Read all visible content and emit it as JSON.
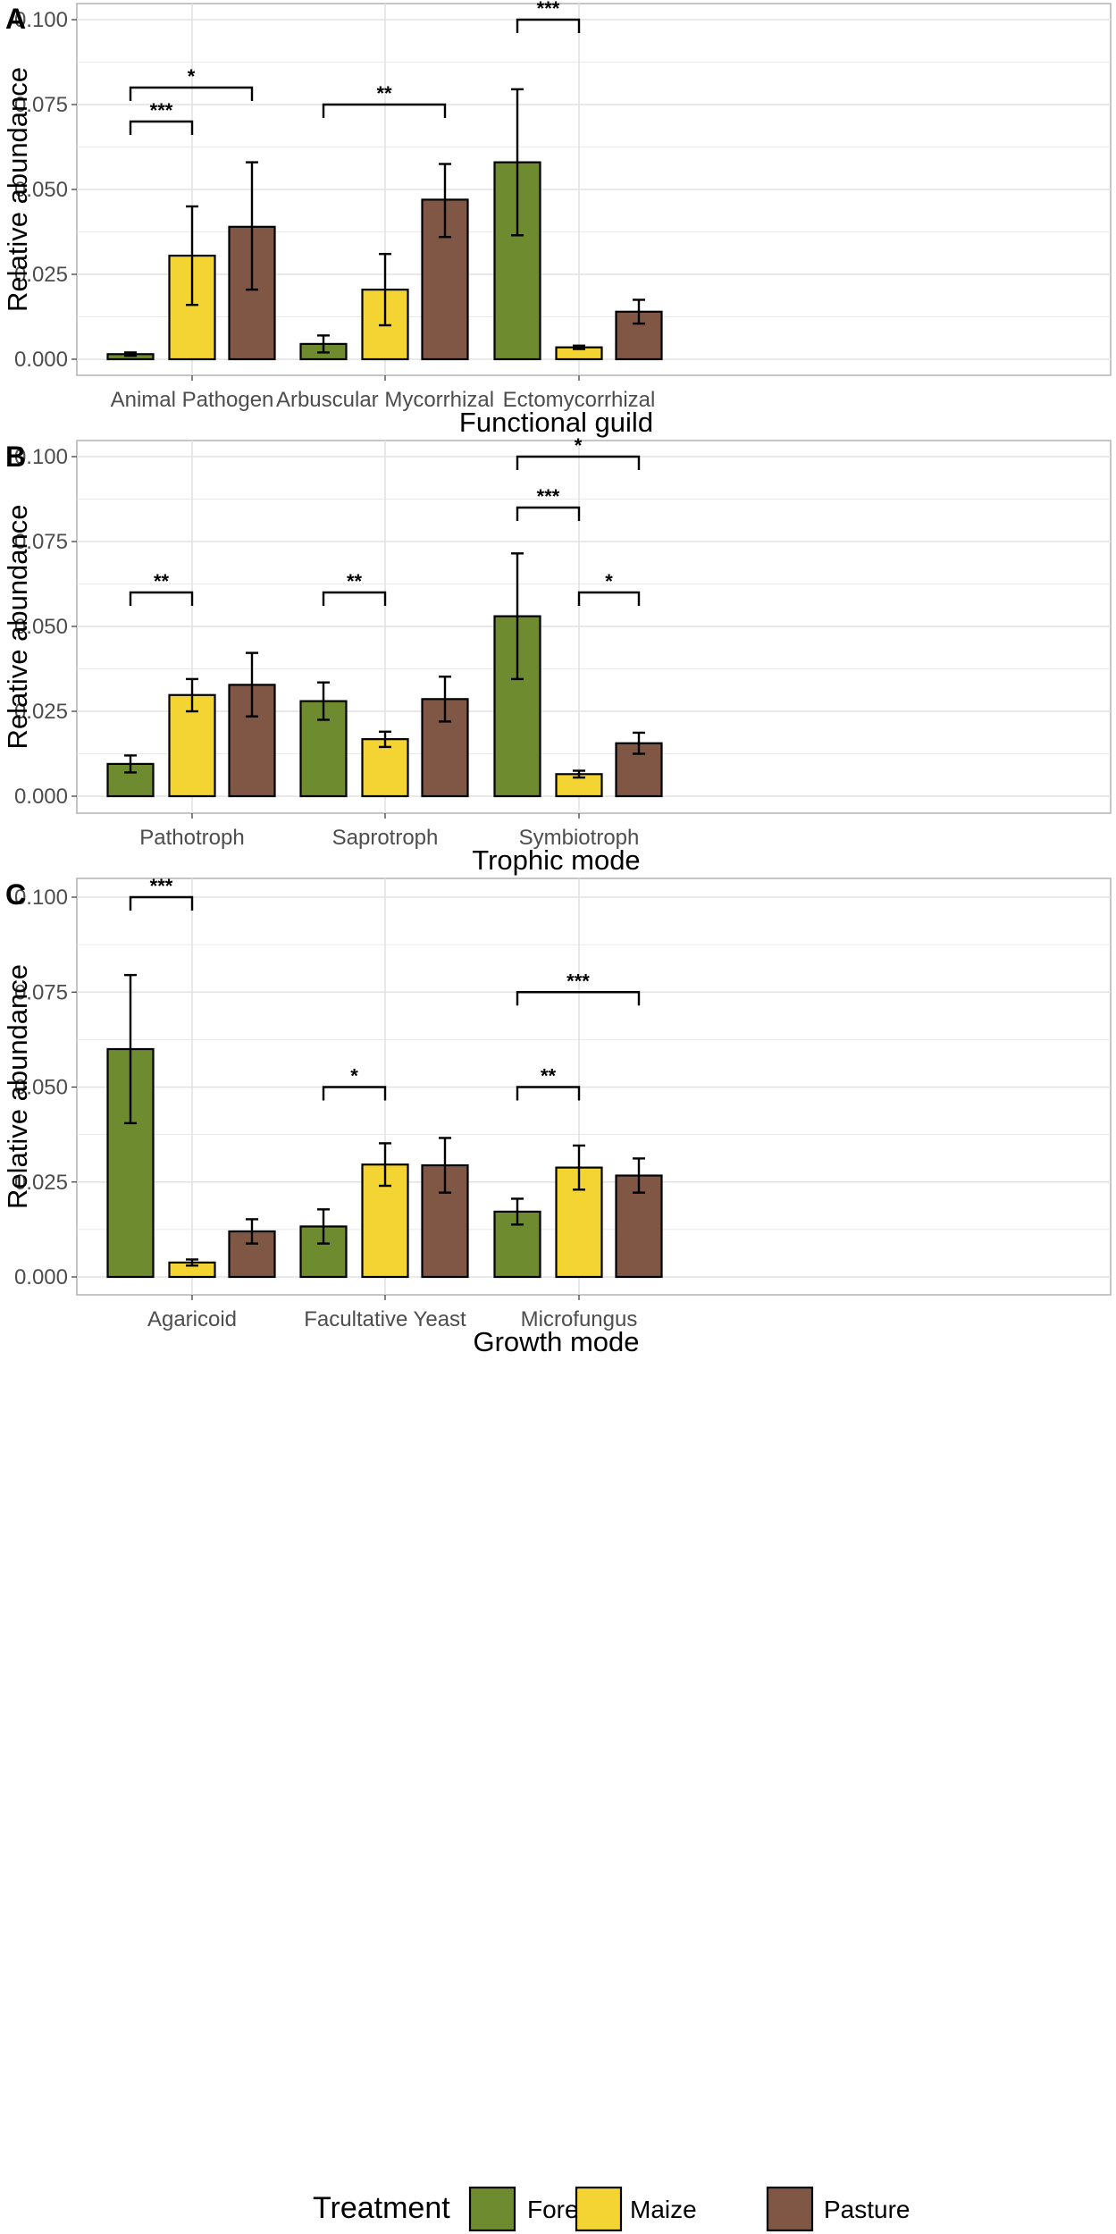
{
  "chart_data": [
    {
      "type": "bar",
      "panel": "A",
      "xlabel": "Functional guild",
      "ylabel": "Relative abundance",
      "ylim": [
        0,
        0.1
      ],
      "yticks": [
        "0.000",
        "0.025",
        "0.050",
        "0.075",
        "0.100"
      ],
      "categories": [
        "Animal Pathogen",
        "Arbuscular Mycorrhizal",
        "Ectomycorrhizal"
      ],
      "series": [
        {
          "name": "Forest",
          "values": [
            0.0015,
            0.0045,
            0.058
          ],
          "err_low": [
            0.001,
            0.002,
            0.0365
          ],
          "err_high": [
            0.002,
            0.007,
            0.0795
          ]
        },
        {
          "name": "Maize",
          "values": [
            0.0305,
            0.0205,
            0.0035
          ],
          "err_low": [
            0.016,
            0.01,
            0.003
          ],
          "err_high": [
            0.045,
            0.031,
            0.004
          ]
        },
        {
          "name": "Pasture",
          "values": [
            0.039,
            0.047,
            0.014
          ],
          "err_low": [
            0.0205,
            0.036,
            0.0105
          ],
          "err_high": [
            0.058,
            0.0575,
            0.0175
          ]
        }
      ],
      "significance": [
        {
          "category": 0,
          "from": 0,
          "to": 1,
          "y": 0.07,
          "label": "***"
        },
        {
          "category": 0,
          "from": 0,
          "to": 2,
          "y": 0.08,
          "label": "*"
        },
        {
          "category": 1,
          "from": 0,
          "to": 2,
          "y": 0.075,
          "label": "**"
        },
        {
          "category": 2,
          "from": 0,
          "to": 1,
          "y": 0.1,
          "label": "***"
        }
      ]
    },
    {
      "type": "bar",
      "panel": "B",
      "xlabel": "Trophic mode",
      "ylabel": "Relative abundance",
      "ylim": [
        0,
        0.1
      ],
      "yticks": [
        "0.000",
        "0.025",
        "0.050",
        "0.075",
        "0.100"
      ],
      "categories": [
        "Pathotroph",
        "Saprotroph",
        "Symbiotroph"
      ],
      "series": [
        {
          "name": "Forest",
          "values": [
            0.0095,
            0.028,
            0.053
          ],
          "err_low": [
            0.007,
            0.0225,
            0.0345
          ],
          "err_high": [
            0.012,
            0.0335,
            0.0715
          ]
        },
        {
          "name": "Maize",
          "values": [
            0.0298,
            0.0168,
            0.0065
          ],
          "err_low": [
            0.025,
            0.0145,
            0.0055
          ],
          "err_high": [
            0.0345,
            0.019,
            0.0075
          ]
        },
        {
          "name": "Pasture",
          "values": [
            0.0328,
            0.0286,
            0.0156
          ],
          "err_low": [
            0.0235,
            0.022,
            0.0125
          ],
          "err_high": [
            0.0422,
            0.0352,
            0.0187
          ]
        }
      ],
      "significance": [
        {
          "category": 0,
          "from": 0,
          "to": 1,
          "y": 0.06,
          "label": "**"
        },
        {
          "category": 1,
          "from": 0,
          "to": 1,
          "y": 0.06,
          "label": "**"
        },
        {
          "category": 2,
          "from": 0,
          "to": 1,
          "y": 0.085,
          "label": "***"
        },
        {
          "category": 2,
          "from": 0,
          "to": 2,
          "y": 0.1,
          "label": "*"
        },
        {
          "category": 2,
          "from": 1,
          "to": 2,
          "y": 0.06,
          "label": "*"
        }
      ]
    },
    {
      "type": "bar",
      "panel": "C",
      "xlabel": "Growth mode",
      "ylabel": "Relative abundance",
      "ylim": [
        0,
        0.1
      ],
      "yticks": [
        "0.000",
        "0.025",
        "0.050",
        "0.075",
        "0.100"
      ],
      "categories": [
        "Agaricoid",
        "Facultative Yeast",
        "Microfungus"
      ],
      "series": [
        {
          "name": "Forest",
          "values": [
            0.06,
            0.0133,
            0.0172
          ],
          "err_low": [
            0.0405,
            0.0088,
            0.0138
          ],
          "err_high": [
            0.0795,
            0.0178,
            0.0206
          ]
        },
        {
          "name": "Maize",
          "values": [
            0.0038,
            0.0296,
            0.0288
          ],
          "err_low": [
            0.003,
            0.024,
            0.023
          ],
          "err_high": [
            0.0046,
            0.0352,
            0.0346
          ]
        },
        {
          "name": "Pasture",
          "values": [
            0.012,
            0.0294,
            0.0267
          ],
          "err_low": [
            0.0088,
            0.0222,
            0.0222
          ],
          "err_high": [
            0.0152,
            0.0366,
            0.0312
          ]
        }
      ],
      "significance": [
        {
          "category": 0,
          "from": 0,
          "to": 1,
          "y": 0.1,
          "label": "***"
        },
        {
          "category": 1,
          "from": 0,
          "to": 1,
          "y": 0.05,
          "label": "*"
        },
        {
          "category": 2,
          "from": 0,
          "to": 1,
          "y": 0.05,
          "label": "**"
        },
        {
          "category": 2,
          "from": 0,
          "to": 2,
          "y": 0.075,
          "label": "***"
        }
      ]
    }
  ],
  "legend": {
    "title": "Treatment",
    "items": [
      {
        "label": "Forest",
        "color": "#6e8b2f"
      },
      {
        "label": "Maize",
        "color": "#f3d433"
      },
      {
        "label": "Pasture",
        "color": "#7f5744"
      }
    ]
  },
  "colors": {
    "panel_border": "#b3b3b3",
    "grid": "#e2e2e2",
    "bar_outline": "#000000",
    "error_bar": "#000000"
  }
}
